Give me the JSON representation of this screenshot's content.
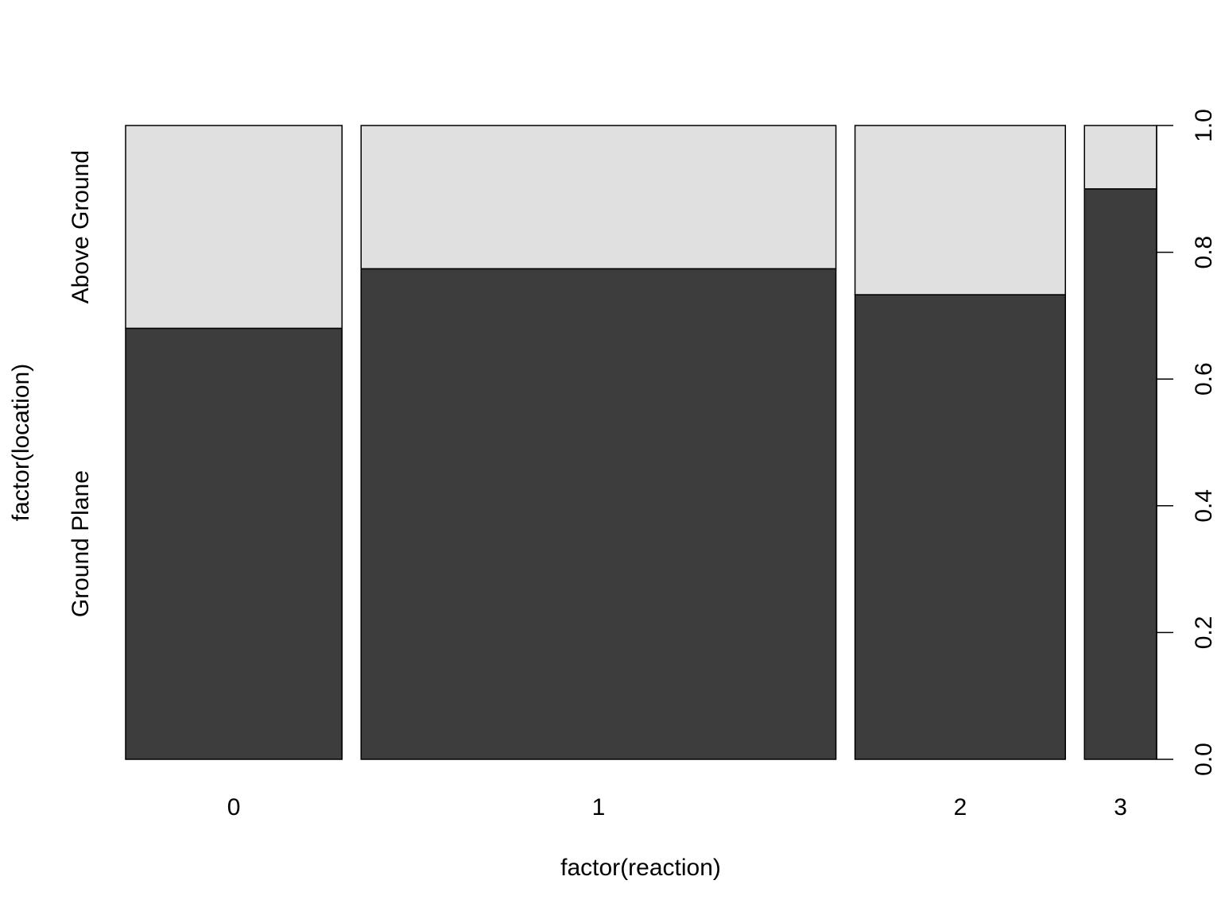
{
  "chart_data": {
    "type": "spineplot",
    "title": "",
    "xlabel": "factor(reaction)",
    "ylabel": "factor(location)",
    "categories": [
      "0",
      "1",
      "2",
      "3"
    ],
    "category_proportions": [
      0.2118,
      0.4647,
      0.2059,
      0.0706
    ],
    "series": [
      {
        "name": "Ground Plane",
        "color": "#3d3d3d",
        "values": [
          0.68,
          0.774,
          0.733,
          0.9
        ]
      },
      {
        "name": "Above Ground",
        "color": "#e0e0e0",
        "values": [
          0.32,
          0.226,
          0.267,
          0.1
        ]
      }
    ],
    "left_axis_labels": [
      "Ground Plane",
      "Above Ground"
    ],
    "right_axis": {
      "ylim": [
        0,
        1
      ],
      "ticks": [
        0.0,
        0.2,
        0.4,
        0.6,
        0.8,
        1.0
      ],
      "tick_labels": [
        "0.0",
        "0.2",
        "0.4",
        "0.6",
        "0.8",
        "1.0"
      ]
    },
    "grid": false
  }
}
